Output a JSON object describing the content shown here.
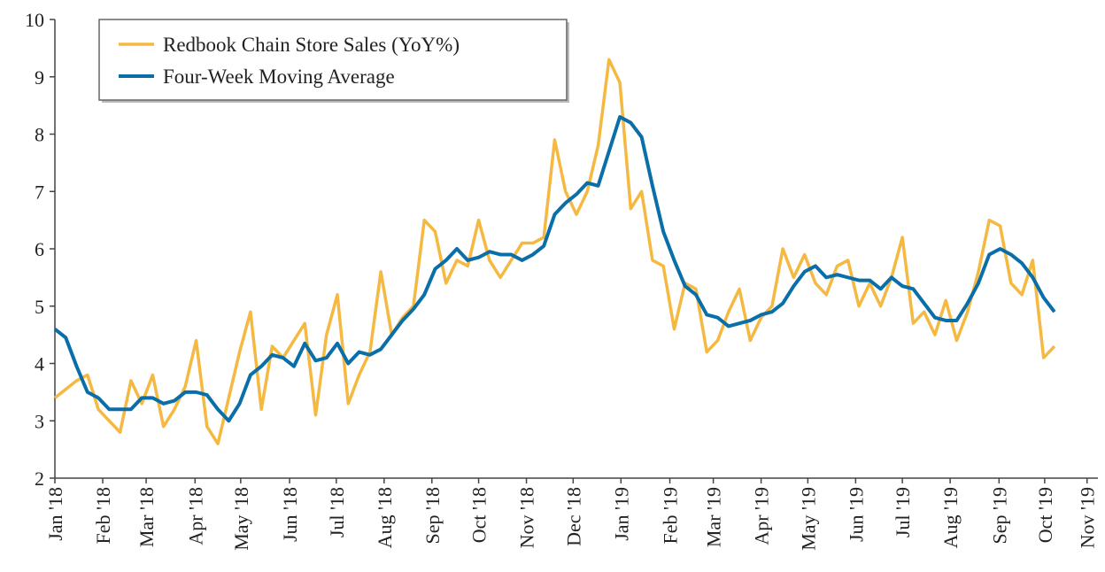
{
  "chart_data": {
    "type": "line",
    "x": [
      0,
      1,
      2,
      3,
      4,
      5,
      6,
      7,
      8,
      9,
      10,
      11,
      12,
      13,
      14,
      15,
      16,
      17,
      18,
      19,
      20,
      21,
      22,
      23,
      24,
      25,
      26,
      27,
      28,
      29,
      30,
      31,
      32,
      33,
      34,
      35,
      36,
      37,
      38,
      39,
      40,
      41,
      42,
      43,
      44,
      45,
      46,
      47,
      48,
      49,
      50,
      51,
      52,
      53,
      54,
      55,
      56,
      57,
      58,
      59,
      60,
      61,
      62,
      63,
      64,
      65,
      66,
      67,
      68,
      69,
      70,
      71,
      72,
      73,
      74,
      75,
      76,
      77,
      78,
      79,
      80,
      81,
      82,
      83,
      84,
      85,
      86,
      87,
      88,
      89,
      90,
      91,
      92
    ],
    "series": [
      {
        "name": "Redbook Chain Store Sales (YoY%)",
        "color": "#f5b942",
        "values": [
          3.4,
          3.55,
          3.7,
          3.8,
          3.2,
          3.0,
          2.8,
          3.7,
          3.3,
          3.8,
          2.9,
          3.2,
          3.6,
          4.4,
          2.9,
          2.6,
          3.4,
          4.2,
          4.9,
          3.2,
          4.3,
          4.1,
          4.4,
          4.7,
          3.1,
          4.5,
          5.2,
          3.3,
          3.8,
          4.2,
          5.6,
          4.5,
          4.8,
          5.0,
          6.5,
          6.3,
          5.4,
          5.8,
          5.7,
          6.5,
          5.8,
          5.5,
          5.8,
          6.1,
          6.1,
          6.2,
          7.9,
          7.0,
          6.6,
          7.0,
          7.8,
          9.3,
          8.9,
          6.7,
          7.0,
          5.8,
          5.7,
          4.6,
          5.4,
          5.3,
          4.2,
          4.4,
          4.9,
          5.3,
          4.4,
          4.8,
          5.0,
          6.0,
          5.5,
          5.9,
          5.4,
          5.2,
          5.7,
          5.8,
          5.0,
          5.4,
          5.0,
          5.5,
          6.2,
          4.7,
          4.9,
          4.5,
          5.1,
          4.4,
          4.9,
          5.6,
          6.5,
          6.4,
          5.4,
          5.2,
          5.8,
          4.1,
          4.3
        ]
      },
      {
        "name": "Four-Week Moving Average",
        "color": "#0a6fa8",
        "values": [
          4.6,
          4.45,
          3.95,
          3.5,
          3.4,
          3.2,
          3.2,
          3.2,
          3.4,
          3.4,
          3.3,
          3.35,
          3.5,
          3.5,
          3.45,
          3.2,
          3.0,
          3.3,
          3.8,
          3.95,
          4.15,
          4.1,
          3.95,
          4.35,
          4.05,
          4.1,
          4.35,
          4.0,
          4.2,
          4.15,
          4.25,
          4.5,
          4.75,
          4.95,
          5.2,
          5.65,
          5.8,
          6.0,
          5.8,
          5.85,
          5.95,
          5.9,
          5.9,
          5.8,
          5.9,
          6.05,
          6.6,
          6.8,
          6.95,
          7.15,
          7.1,
          7.7,
          8.3,
          8.2,
          7.95,
          7.1,
          6.3,
          5.8,
          5.35,
          5.2,
          4.85,
          4.8,
          4.65,
          4.7,
          4.75,
          4.85,
          4.9,
          5.05,
          5.35,
          5.6,
          5.7,
          5.5,
          5.55,
          5.5,
          5.45,
          5.45,
          5.3,
          5.5,
          5.35,
          5.3,
          5.05,
          4.8,
          4.75,
          4.75,
          5.05,
          5.4,
          5.9,
          6.0,
          5.9,
          5.75,
          5.5,
          5.15,
          4.9
        ]
      }
    ],
    "xlim": [
      0,
      96
    ],
    "xticks": [
      {
        "value": 0,
        "label": "Jan '18"
      },
      {
        "value": 4.4,
        "label": "Feb '18"
      },
      {
        "value": 8.4,
        "label": "Mar '18"
      },
      {
        "value": 12.9,
        "label": "Apr '18"
      },
      {
        "value": 17.1,
        "label": "May '18"
      },
      {
        "value": 21.6,
        "label": "Jun '18"
      },
      {
        "value": 25.9,
        "label": "Jul '18"
      },
      {
        "value": 30.3,
        "label": "Aug '18"
      },
      {
        "value": 34.7,
        "label": "Sep '18"
      },
      {
        "value": 39.0,
        "label": "Oct '18"
      },
      {
        "value": 43.4,
        "label": "Nov '18"
      },
      {
        "value": 47.7,
        "label": "Dec '18"
      },
      {
        "value": 52.1,
        "label": "Jan '19"
      },
      {
        "value": 56.6,
        "label": "Feb '19"
      },
      {
        "value": 60.6,
        "label": "Mar '19"
      },
      {
        "value": 65.0,
        "label": "Apr '19"
      },
      {
        "value": 69.3,
        "label": "May '19"
      },
      {
        "value": 73.7,
        "label": "Jun '19"
      },
      {
        "value": 78.0,
        "label": "Jul '19"
      },
      {
        "value": 82.4,
        "label": "Aug '19"
      },
      {
        "value": 86.9,
        "label": "Sep '19"
      },
      {
        "value": 91.1,
        "label": "Oct '19"
      },
      {
        "value": 95.0,
        "label": "Nov '19"
      }
    ],
    "ylim": [
      2,
      10
    ],
    "yticks": [
      2,
      3,
      4,
      5,
      6,
      7,
      8,
      9,
      10
    ],
    "grid": false,
    "legend": "upper left"
  }
}
